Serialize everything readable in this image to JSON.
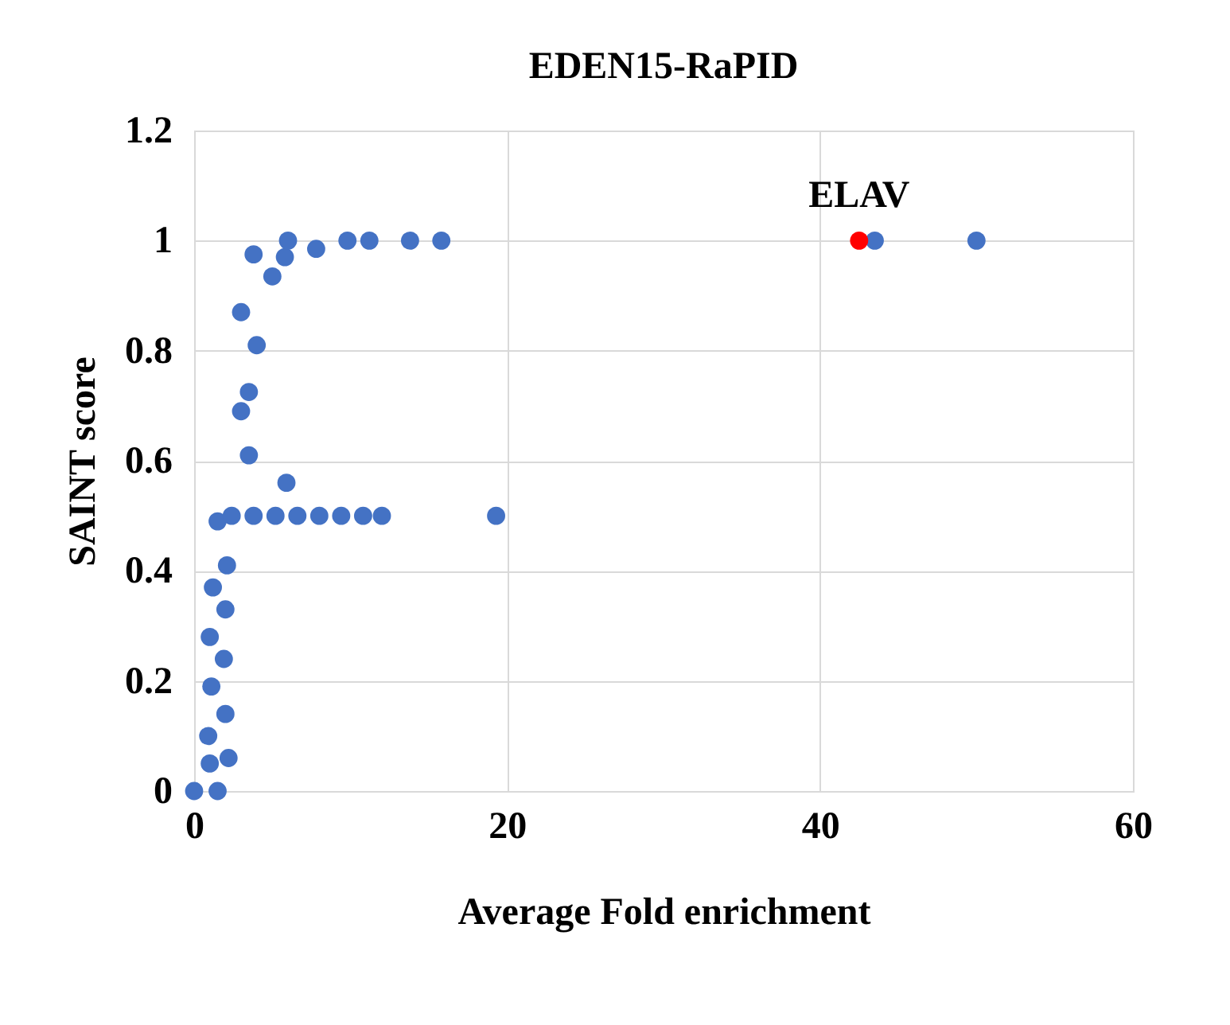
{
  "chart_data": {
    "type": "scatter",
    "title": "EDEN15-RaPID",
    "xlabel": "Average Fold enrichment",
    "ylabel": "SAINT score",
    "xlim": [
      0,
      60
    ],
    "xticks": [
      0,
      20,
      40,
      60
    ],
    "ylim": [
      0,
      1.2
    ],
    "yticks": [
      {
        "value": 0,
        "label": "0"
      },
      0.2,
      0.4,
      0.6,
      0.8,
      {
        "value": 1,
        "label": "1"
      },
      1.2
    ],
    "grid": true,
    "marker": "circle",
    "series": [
      {
        "color": "#4472c4",
        "x": [
          0,
          1.5,
          1,
          2.2,
          0.9,
          2,
          1.1,
          1.9,
          1,
          2,
          1.2,
          2.1,
          1.5,
          2.4,
          3.8,
          5.2,
          6.6,
          8,
          9.4,
          10.8,
          12,
          19.3,
          5.9,
          3.5,
          3,
          3.5,
          3,
          4,
          5,
          3.8,
          5.8,
          6,
          7.8,
          9.8,
          11.2,
          13.8,
          15.8,
          43.5,
          50
        ],
        "values": [
          0,
          0,
          0.05,
          0.06,
          0.1,
          0.14,
          0.19,
          0.24,
          0.28,
          0.33,
          0.37,
          0.41,
          0.49,
          0.5,
          0.5,
          0.5,
          0.5,
          0.5,
          0.5,
          0.5,
          0.5,
          0.5,
          0.56,
          0.61,
          0.69,
          0.725,
          0.87,
          0.81,
          0.935,
          0.975,
          0.97,
          1,
          0.985,
          1,
          1,
          1,
          1,
          1,
          1
        ]
      },
      {
        "color": "#ff0000",
        "x": [
          42.5
        ],
        "values": [
          1
        ]
      }
    ],
    "annotations": [
      {
        "text": "ELAV",
        "x": 42.5,
        "y": 1
      }
    ]
  }
}
